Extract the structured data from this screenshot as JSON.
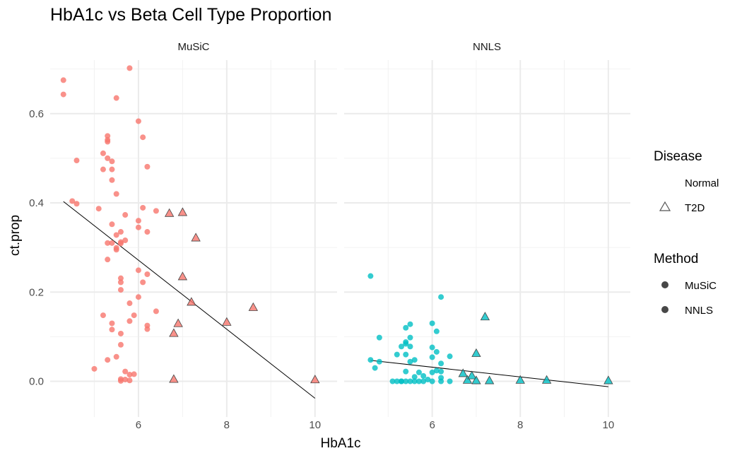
{
  "chart_data": {
    "type": "scatter",
    "title": "HbA1c vs Beta Cell Type Proportion",
    "xlabel": "HbA1c",
    "ylabel": "ct.prop",
    "xlim": [
      4.0,
      10.5
    ],
    "ylim": [
      -0.08,
      0.72
    ],
    "x_ticks": [
      6,
      8,
      10
    ],
    "y_ticks": [
      0.0,
      0.2,
      0.4,
      0.6
    ],
    "x_tick_labels": [
      "6",
      "8",
      "10"
    ],
    "y_tick_labels": [
      "0.0",
      "0.2",
      "0.4",
      "0.6"
    ],
    "grid": true,
    "colors": {
      "MuSiC": "#F8766D",
      "NNLS": "#00BFC4"
    },
    "legend_placement": "right",
    "legends": {
      "disease": {
        "title": "Disease",
        "entries": [
          "Normal",
          "T2D"
        ]
      },
      "method": {
        "title": "Method",
        "entries": [
          "MuSiC",
          "NNLS"
        ]
      }
    },
    "panels": [
      {
        "strip": "MuSiC",
        "method": "MuSiC",
        "normal": [
          [
            4.3,
            0.675
          ],
          [
            4.3,
            0.643
          ],
          [
            4.5,
            0.404
          ],
          [
            4.6,
            0.398
          ],
          [
            4.6,
            0.495
          ],
          [
            5.1,
            0.387
          ],
          [
            5.2,
            0.511
          ],
          [
            5.2,
            0.475
          ],
          [
            5.2,
            0.148
          ],
          [
            5.3,
            0.55
          ],
          [
            5.3,
            0.541
          ],
          [
            5.3,
            0.537
          ],
          [
            5.3,
            0.5
          ],
          [
            5.3,
            0.31
          ],
          [
            5.3,
            0.273
          ],
          [
            5.3,
            0.048
          ],
          [
            5.0,
            0.028
          ],
          [
            5.4,
            0.493
          ],
          [
            5.4,
            0.475
          ],
          [
            5.4,
            0.451
          ],
          [
            5.4,
            0.352
          ],
          [
            5.4,
            0.31
          ],
          [
            5.4,
            0.13
          ],
          [
            5.4,
            0.116
          ],
          [
            5.5,
            0.635
          ],
          [
            5.5,
            0.42
          ],
          [
            5.5,
            0.328
          ],
          [
            5.5,
            0.299
          ],
          [
            5.5,
            0.295
          ],
          [
            5.5,
            0.055
          ],
          [
            5.6,
            0.335
          ],
          [
            5.6,
            0.312
          ],
          [
            5.6,
            0.309
          ],
          [
            5.6,
            0.231
          ],
          [
            5.6,
            0.222
          ],
          [
            5.6,
            0.205
          ],
          [
            5.6,
            0.107
          ],
          [
            5.6,
            0.082
          ],
          [
            5.6,
            0.005
          ],
          [
            5.6,
            0.001
          ],
          [
            5.7,
            0.373
          ],
          [
            5.7,
            0.316
          ],
          [
            5.7,
            0.022
          ],
          [
            5.7,
            0.004
          ],
          [
            5.8,
            0.702
          ],
          [
            5.8,
            0.175
          ],
          [
            5.8,
            0.135
          ],
          [
            5.8,
            0.015
          ],
          [
            5.8,
            0.002
          ],
          [
            5.9,
            0.148
          ],
          [
            5.9,
            0.016
          ],
          [
            6.0,
            0.583
          ],
          [
            6.0,
            0.36
          ],
          [
            6.0,
            0.345
          ],
          [
            6.0,
            0.249
          ],
          [
            6.0,
            0.189
          ],
          [
            6.1,
            0.547
          ],
          [
            6.1,
            0.389
          ],
          [
            6.1,
            0.222
          ],
          [
            6.2,
            0.481
          ],
          [
            6.2,
            0.335
          ],
          [
            6.2,
            0.24
          ],
          [
            6.2,
            0.125
          ],
          [
            6.2,
            0.117
          ],
          [
            6.4,
            0.382
          ],
          [
            6.4,
            0.157
          ]
        ],
        "t2d": [
          [
            6.7,
            0.377
          ],
          [
            6.8,
            0.108
          ],
          [
            6.8,
            0.005
          ],
          [
            6.9,
            0.13
          ],
          [
            7.0,
            0.379
          ],
          [
            7.0,
            0.235
          ],
          [
            7.2,
            0.178
          ],
          [
            7.3,
            0.322
          ],
          [
            8.0,
            0.133
          ],
          [
            8.6,
            0.166
          ],
          [
            10.0,
            0.004
          ]
        ],
        "fit": [
          [
            4.3,
            0.403
          ],
          [
            10.0,
            -0.038
          ]
        ]
      },
      {
        "strip": "NNLS",
        "method": "NNLS",
        "normal": [
          [
            4.6,
            0.236
          ],
          [
            4.6,
            0.048
          ],
          [
            4.7,
            0.03
          ],
          [
            4.8,
            0.098
          ],
          [
            4.8,
            0.044
          ],
          [
            5.1,
            0.0
          ],
          [
            5.2,
            0.0
          ],
          [
            5.2,
            0.06
          ],
          [
            5.3,
            0.0
          ],
          [
            5.3,
            0.078
          ],
          [
            5.3,
            0.0
          ],
          [
            5.4,
            0.12
          ],
          [
            5.4,
            0.088
          ],
          [
            5.4,
            0.084
          ],
          [
            5.4,
            0.06
          ],
          [
            5.4,
            0.022
          ],
          [
            5.4,
            0.0
          ],
          [
            5.5,
            0.128
          ],
          [
            5.5,
            0.098
          ],
          [
            5.5,
            0.078
          ],
          [
            5.5,
            0.044
          ],
          [
            5.5,
            0.0
          ],
          [
            5.6,
            0.048
          ],
          [
            5.6,
            0.01
          ],
          [
            5.6,
            0.0
          ],
          [
            5.7,
            0.02
          ],
          [
            5.7,
            0.0
          ],
          [
            5.8,
            0.012
          ],
          [
            5.8,
            0.0
          ],
          [
            5.9,
            0.004
          ],
          [
            6.0,
            0.13
          ],
          [
            6.0,
            0.076
          ],
          [
            6.0,
            0.054
          ],
          [
            6.0,
            0.02
          ],
          [
            6.0,
            0.0
          ],
          [
            6.1,
            0.112
          ],
          [
            6.1,
            0.066
          ],
          [
            6.1,
            0.024
          ],
          [
            6.2,
            0.189
          ],
          [
            6.2,
            0.04
          ],
          [
            6.2,
            0.022
          ],
          [
            6.2,
            0.008
          ],
          [
            6.2,
            0.0
          ],
          [
            6.4,
            0.056
          ],
          [
            6.4,
            0.0
          ]
        ],
        "t2d": [
          [
            6.7,
            0.018
          ],
          [
            6.8,
            0.003
          ],
          [
            6.9,
            0.013
          ],
          [
            7.0,
            0.063
          ],
          [
            7.0,
            0.002
          ],
          [
            7.2,
            0.145
          ],
          [
            7.3,
            0.002
          ],
          [
            8.0,
            0.003
          ],
          [
            8.6,
            0.003
          ],
          [
            10.0,
            0.002
          ]
        ],
        "fit": [
          [
            4.6,
            0.047
          ],
          [
            10.0,
            -0.012
          ]
        ]
      }
    ]
  }
}
